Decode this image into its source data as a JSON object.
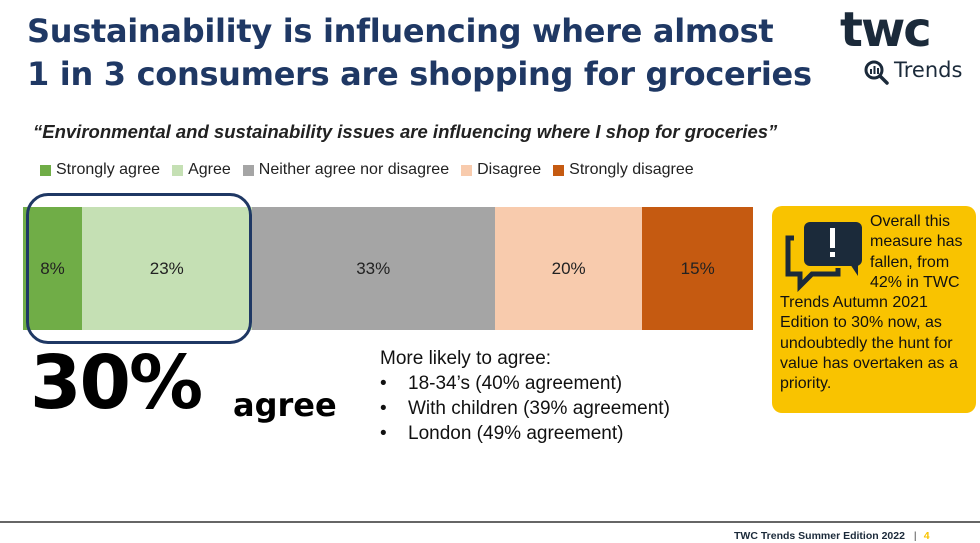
{
  "title_line1": "Sustainability is influencing where almost",
  "title_line2": "1 in 3 consumers are shopping for groceries",
  "logo": {
    "brand": "twc",
    "sub": "Trends"
  },
  "chart_data": {
    "type": "bar",
    "orientation": "horizontal-stacked-100",
    "title": "“Environmental and sustainability issues are influencing where I shop for groceries”",
    "categories": [
      "Strongly agree",
      "Agree",
      "Neither agree nor disagree",
      "Disagree",
      "Strongly disagree"
    ],
    "values": [
      8,
      23,
      33,
      20,
      15
    ],
    "labels": [
      "8%",
      "23%",
      "33%",
      "20%",
      "15%"
    ],
    "colors": [
      "#70ad47",
      "#c5e0b4",
      "#a5a5a5",
      "#f8cbad",
      "#c55a11"
    ],
    "legend_position": "top"
  },
  "summary": {
    "value": "30%",
    "label": "agree"
  },
  "more_likely": {
    "heading": "More likely to agree:",
    "items": [
      "18-34’s (40% agreement)",
      "With children (39% agreement)",
      "London (49% agreement)"
    ]
  },
  "callout": {
    "icon": "chat-alert-icon",
    "text": "Overall this measure has fallen, from 42% in TWC Trends Autumn 2021 Edition to 30% now, as undoubtedly the hunt for value has overtaken as a priority.",
    "color": "#f9c300"
  },
  "footer": {
    "text": "TWC Trends Summer Edition 2022",
    "sep": "|",
    "page": "4"
  }
}
